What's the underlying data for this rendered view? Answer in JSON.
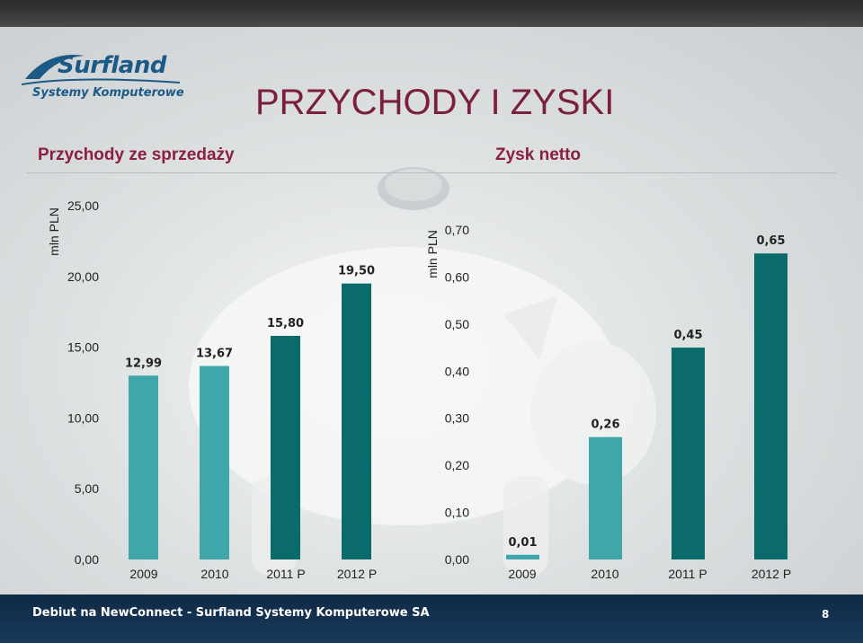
{
  "slide": {
    "title": "PRZYCHODY I ZYSKI",
    "logo_name": "Surfland",
    "logo_tagline": "Systemy Komputerowe",
    "footer": "Debiut na NewConnect - Surfland Systemy Komputerowe SA",
    "page_number": "8",
    "colors": {
      "teal_light": "#3fa7ab",
      "teal_dark": "#0b6b6b",
      "title": "#7a1f3d",
      "footer_bg": "#1a3a5c"
    }
  },
  "chart_data": [
    {
      "type": "bar",
      "title": "Przychody ze sprzedaży",
      "ylabel": "mln PLN",
      "categories": [
        "2009",
        "2010",
        "2011 P",
        "2012 P"
      ],
      "values": [
        12.99,
        13.67,
        15.8,
        19.5
      ],
      "value_labels": [
        "12,99",
        "13,67",
        "15,80",
        "19,50"
      ],
      "bar_colors": [
        "#3fa7ab",
        "#3fa7ab",
        "#0b6b6b",
        "#0b6b6b"
      ],
      "ylim": [
        0,
        25
      ],
      "yticks": [
        "0,00",
        "5,00",
        "10,00",
        "15,00",
        "20,00",
        "25,00"
      ],
      "grid": false
    },
    {
      "type": "bar",
      "title": "Zysk netto",
      "ylabel": "mln PLN",
      "categories": [
        "2009",
        "2010",
        "2011 P",
        "2012 P"
      ],
      "values": [
        0.01,
        0.26,
        0.45,
        0.65
      ],
      "value_labels": [
        "0,01",
        "0,26",
        "0,45",
        "0,65"
      ],
      "bar_colors": [
        "#3fa7ab",
        "#3fa7ab",
        "#0b6b6b",
        "#0b6b6b"
      ],
      "ylim": [
        0,
        0.7
      ],
      "yticks": [
        "0,00",
        "0,10",
        "0,20",
        "0,30",
        "0,40",
        "0,50",
        "0,60",
        "0,70"
      ],
      "grid": false
    }
  ]
}
